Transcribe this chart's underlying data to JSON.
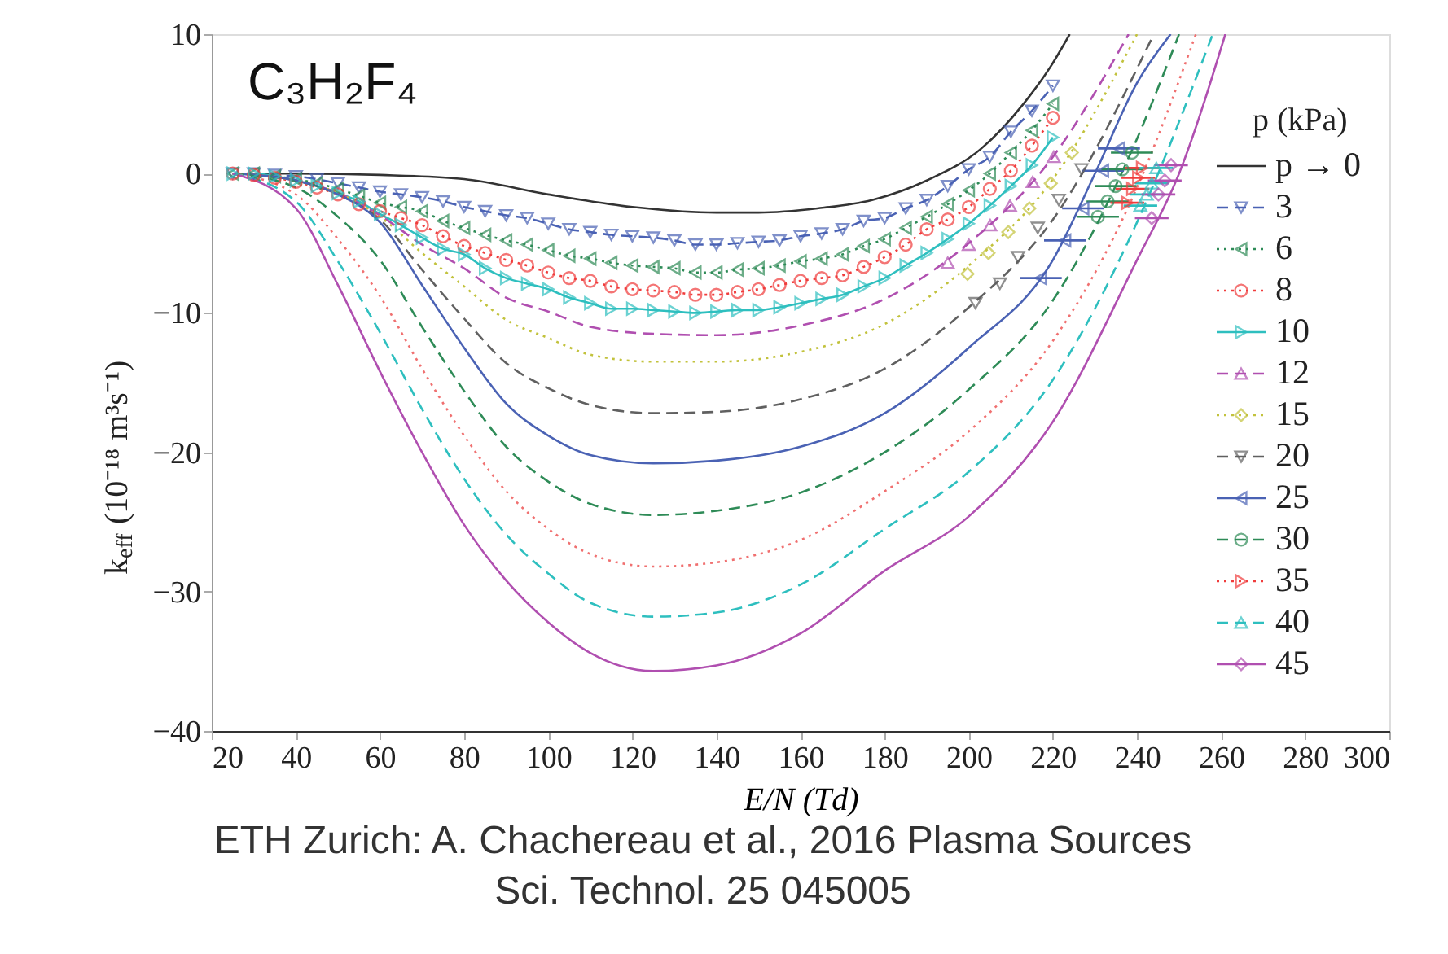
{
  "chart_data": {
    "type": "line",
    "title": "C₃H₂F₄",
    "xlabel": "E/N (Td)",
    "ylabel": "k$_{eff}$ (10⁻¹⁸ m³s⁻¹)",
    "legend_title": "p (kPa)",
    "legend": "right",
    "grid": false,
    "xlim": [
      20,
      300
    ],
    "xticks": [
      20,
      40,
      60,
      80,
      100,
      120,
      140,
      160,
      180,
      200,
      220,
      240,
      260,
      280,
      300
    ],
    "ylim": [
      -40,
      10
    ],
    "yticks": [
      -40,
      -30,
      -20,
      -10,
      0,
      10
    ],
    "annotations": [
      "ETH Zurich: A. Chachereau et al., 2016 Plasma Sources Sci. Technol. 25 045005"
    ],
    "series": [
      {
        "name": "p → 0",
        "color": "#333333",
        "line_style": "solid",
        "marker": "none",
        "x": [
          25,
          40,
          60,
          80,
          100,
          120,
          140,
          150,
          164,
          177,
          190,
          203,
          213,
          219.5,
          224
        ],
        "values": [
          0,
          0,
          -0.1,
          -0.4,
          -1.5,
          -2.4,
          -2.8,
          -2.8,
          -2.5,
          -1.9,
          -0.5,
          1.8,
          5.0,
          7.7,
          10.0
        ]
      },
      {
        "name": "3",
        "color": "#4a62b4",
        "line_style": "dashed",
        "marker": "triangle-down",
        "x": [
          25,
          30,
          35,
          40,
          45,
          50,
          55,
          60,
          65,
          70,
          75,
          80,
          85,
          90,
          95,
          100,
          105,
          110,
          115,
          120,
          125,
          130,
          135,
          140,
          145,
          150,
          155,
          160,
          165,
          170,
          175,
          180,
          185,
          190,
          195,
          200,
          205,
          210,
          215,
          220
        ],
        "values": [
          0,
          0,
          -0.1,
          -0.2,
          -0.4,
          -0.7,
          -1.0,
          -1.3,
          -1.5,
          -1.7,
          -2.0,
          -2.4,
          -2.7,
          -3.0,
          -3.2,
          -3.6,
          -4.0,
          -4.2,
          -4.4,
          -4.5,
          -4.6,
          -4.8,
          -5.1,
          -5.1,
          -5.0,
          -4.9,
          -4.8,
          -4.5,
          -4.3,
          -4.0,
          -3.4,
          -3.2,
          -2.5,
          -1.9,
          -0.9,
          0.3,
          1.2,
          3.0,
          4.5,
          6.3
        ]
      },
      {
        "name": "6",
        "color": "#2e8b57",
        "line_style": "dotted",
        "marker": "triangle-left",
        "x": [
          25,
          30,
          35,
          40,
          45,
          50,
          55,
          60,
          65,
          70,
          75,
          80,
          85,
          90,
          95,
          100,
          105,
          110,
          115,
          120,
          125,
          130,
          135,
          140,
          145,
          150,
          155,
          160,
          165,
          170,
          175,
          180,
          185,
          190,
          195,
          200,
          205,
          210,
          215,
          220
        ],
        "values": [
          0,
          0,
          -0.2,
          -0.4,
          -0.7,
          -1.1,
          -1.6,
          -2.1,
          -2.4,
          -2.7,
          -3.4,
          -3.9,
          -4.4,
          -4.8,
          -5.1,
          -5.5,
          -5.9,
          -6.1,
          -6.4,
          -6.6,
          -6.7,
          -6.8,
          -7.1,
          -7.1,
          -6.9,
          -6.8,
          -6.6,
          -6.3,
          -6.1,
          -5.8,
          -5.2,
          -4.7,
          -3.9,
          -3.1,
          -2.2,
          -1.2,
          0.0,
          1.5,
          3.1,
          5.0
        ]
      },
      {
        "name": "8",
        "color": "#f03c3c",
        "line_style": "dotted",
        "marker": "circle",
        "x": [
          25,
          30,
          35,
          40,
          45,
          50,
          55,
          60,
          65,
          70,
          75,
          80,
          85,
          90,
          95,
          100,
          105,
          110,
          115,
          120,
          125,
          130,
          135,
          140,
          145,
          150,
          155,
          160,
          165,
          170,
          175,
          180,
          185,
          190,
          195,
          200,
          205,
          210,
          215,
          220
        ],
        "values": [
          0,
          -0.1,
          -0.3,
          -0.6,
          -1.0,
          -1.5,
          -2.2,
          -2.7,
          -3.2,
          -3.7,
          -4.5,
          -5.2,
          -5.7,
          -6.2,
          -6.6,
          -7.1,
          -7.5,
          -7.7,
          -8.1,
          -8.3,
          -8.4,
          -8.5,
          -8.7,
          -8.7,
          -8.5,
          -8.3,
          -8.0,
          -7.7,
          -7.5,
          -7.3,
          -6.7,
          -6.0,
          -5.1,
          -4.0,
          -3.3,
          -2.4,
          -1.1,
          0.2,
          2.0,
          4.0
        ]
      },
      {
        "name": "10",
        "color": "#2ebfbf",
        "line_style": "solid",
        "marker": "triangle-right",
        "x": [
          25,
          30,
          35,
          40,
          45,
          50,
          55,
          60,
          65,
          70,
          75,
          80,
          85,
          90,
          95,
          100,
          105,
          110,
          115,
          120,
          125,
          130,
          135,
          140,
          145,
          150,
          155,
          160,
          165,
          170,
          175,
          180,
          185,
          190,
          195,
          200,
          205,
          210,
          215,
          220
        ],
        "values": [
          0,
          0,
          -0.2,
          -0.5,
          -0.9,
          -1.4,
          -2.0,
          -2.9,
          -3.7,
          -4.6,
          -5.4,
          -5.8,
          -6.8,
          -7.5,
          -7.9,
          -8.3,
          -8.9,
          -9.3,
          -9.7,
          -9.7,
          -9.8,
          -9.9,
          -10.0,
          -9.9,
          -9.8,
          -9.8,
          -9.6,
          -9.3,
          -9.0,
          -8.7,
          -8.1,
          -7.5,
          -6.6,
          -5.7,
          -4.7,
          -3.6,
          -2.3,
          -0.9,
          0.6,
          2.6
        ]
      },
      {
        "type": "scatter",
        "name": "12",
        "color": "#b04fb0",
        "line_style": "dashed",
        "marker": "triangle-up",
        "x": [
          195,
          200,
          205.1,
          209.8,
          215.2,
          220.2
        ],
        "values": [
          -6.4,
          -5.1,
          -3.7,
          -2.3,
          -0.6,
          1.2
        ]
      },
      {
        "color": "#b04fb0",
        "line_style": "dashed",
        "x": [
          25,
          40,
          50,
          60,
          70,
          80,
          90,
          100,
          110,
          125,
          140,
          160,
          180,
          200,
          220,
          238
        ],
        "values": [
          0,
          -0.5,
          -1.4,
          -3.0,
          -5.1,
          -6.8,
          -8.9,
          -9.9,
          -11.0,
          -11.5,
          -11.6,
          -10.9,
          -9.0,
          -5.0,
          1.2,
          10
        ]
      },
      {
        "type": "scatter",
        "name": "15",
        "color": "#c2c23c",
        "line_style": "dotted",
        "marker": "diamond",
        "x": [
          199.7,
          204.7,
          209.4,
          214.4,
          219.5,
          224.5
        ],
        "values": [
          -7.2,
          -5.7,
          -4.2,
          -2.5,
          -0.7,
          1.5
        ]
      },
      {
        "color": "#c2c23c",
        "line_style": "dotted",
        "x": [
          25,
          40,
          50,
          60,
          70,
          80,
          90,
          100,
          110,
          125,
          140,
          160,
          180,
          200,
          220,
          240
        ],
        "values": [
          0,
          -0.5,
          -1.4,
          -3.1,
          -5.7,
          -8.1,
          -10.5,
          -11.8,
          -13.0,
          -13.5,
          -13.5,
          -12.8,
          -10.8,
          -6.6,
          -0.4,
          10
        ]
      },
      {
        "type": "scatter",
        "name": "20",
        "color": "#606060",
        "line_style": "dashed",
        "marker": "triangle-down",
        "x": [
          201.6,
          207.4,
          211.7,
          216.4,
          221.4,
          226.8
        ],
        "values": [
          -9.3,
          -7.9,
          -6.0,
          -3.9,
          -1.9,
          0.3
        ]
      },
      {
        "color": "#606060",
        "line_style": "dashed",
        "x": [
          25,
          40,
          50,
          60,
          70,
          80,
          90,
          100,
          110,
          125,
          140,
          160,
          180,
          200,
          220,
          244
        ],
        "values": [
          0,
          -0.5,
          -1.5,
          -3.3,
          -6.9,
          -10.4,
          -13.6,
          -15.4,
          -16.6,
          -17.2,
          -17.1,
          -16.2,
          -14.0,
          -9.6,
          -3.3,
          10
        ]
      },
      {
        "type": "scatter",
        "name": "25",
        "color": "#4a62b4",
        "line_style": "solid",
        "marker": "triangle-left",
        "x": [
          217.1,
          222.9,
          227.2,
          231.9,
          235.7
        ],
        "values": [
          -7.5,
          -4.8,
          -2.5,
          0.2,
          1.8
        ],
        "xerrors": [
          5,
          5,
          5,
          5,
          5
        ]
      },
      {
        "color": "#4a62b4",
        "line_style": "solid",
        "x": [
          25,
          40,
          50,
          60,
          70,
          80,
          90,
          100,
          110,
          125,
          140,
          160,
          180,
          200,
          220,
          230,
          240,
          248
        ],
        "values": [
          0,
          -0.5,
          -1.5,
          -3.5,
          -8.0,
          -12.5,
          -16.5,
          -18.8,
          -20.2,
          -20.8,
          -20.6,
          -19.6,
          -17.2,
          -12.5,
          -6.2,
          0,
          6.5,
          10
        ]
      },
      {
        "type": "scatter",
        "name": "30",
        "color": "#2e8b57",
        "line_style": "dashed",
        "marker": "circle",
        "x": [
          230.7,
          233.0,
          234.9,
          236.5,
          238.8
        ],
        "values": [
          -3.1,
          -2.0,
          -0.9,
          0.3,
          1.5
        ],
        "xerrors": [
          5,
          5,
          5,
          5,
          5
        ]
      },
      {
        "color": "#2e8b57",
        "line_style": "dashed",
        "x": [
          25,
          40,
          50,
          60,
          70,
          80,
          90,
          100,
          110,
          125,
          140,
          160,
          180,
          200,
          220,
          240,
          250
        ],
        "values": [
          0,
          -1.0,
          -3.1,
          -6.2,
          -11.0,
          -15.6,
          -19.6,
          -22.1,
          -23.7,
          -24.5,
          -24.2,
          -22.9,
          -20.0,
          -15.5,
          -9.1,
          2.5,
          10
        ]
      },
      {
        "type": "scatter",
        "name": "35",
        "color": "#f03c3c",
        "line_style": "dotted",
        "marker": "triangle-right",
        "x": [
          237.7,
          238.9,
          240.3,
          241.2
        ],
        "values": [
          -2.1,
          -1.1,
          -0.3,
          0.4
        ],
        "xerrors": [
          4,
          4,
          4,
          4
        ]
      },
      {
        "color": "#f07070",
        "line_style": "dotted",
        "x": [
          25,
          40,
          50,
          60,
          70,
          80,
          90,
          100,
          110,
          125,
          140,
          160,
          180,
          200,
          220,
          240,
          254
        ],
        "values": [
          0,
          -1.5,
          -4.7,
          -8.8,
          -14.0,
          -18.8,
          -22.8,
          -25.5,
          -27.3,
          -28.2,
          -27.9,
          -26.3,
          -22.8,
          -18.5,
          -12.0,
          -1.0,
          10
        ]
      },
      {
        "type": "scatter",
        "name": "40",
        "color": "#2ebfbf",
        "line_style": "dashed",
        "marker": "triangle-up",
        "x": [
          240.8,
          242.3,
          243.5,
          244.6
        ],
        "values": [
          -2.3,
          -1.5,
          -0.7,
          0.4
        ],
        "xerrors": [
          4,
          4,
          4,
          4
        ]
      },
      {
        "color": "#2ebfbf",
        "line_style": "dashed",
        "x": [
          25,
          40,
          50,
          60,
          70,
          80,
          90,
          100,
          110,
          125,
          140,
          160,
          180,
          200,
          220,
          240,
          258
        ],
        "values": [
          0,
          -2.0,
          -6.3,
          -11.4,
          -16.9,
          -21.9,
          -25.9,
          -28.7,
          -30.8,
          -31.8,
          -31.5,
          -29.5,
          -25.5,
          -21.4,
          -14.8,
          -3.5,
          10
        ]
      },
      {
        "type": "scatter",
        "name": "45",
        "color": "#b04fb0",
        "line_style": "solid",
        "marker": "diamond",
        "x": [
          243.5,
          245.1,
          246.6,
          248.1
        ],
        "values": [
          -3.2,
          -1.5,
          -0.5,
          0.6
        ],
        "xerrors": [
          4,
          4,
          4,
          4
        ]
      },
      {
        "color": "#b04fb0",
        "line_style": "solid",
        "x": [
          25,
          40,
          50,
          60,
          70,
          80,
          90,
          100,
          110,
          125,
          140,
          160,
          180,
          200,
          220,
          240,
          250,
          261
        ],
        "values": [
          0,
          -2.5,
          -8.0,
          -14.2,
          -20.0,
          -25.2,
          -29.2,
          -32.2,
          -34.4,
          -35.7,
          -35.3,
          -33.0,
          -28.5,
          -24.6,
          -17.8,
          -6.2,
          0,
          10
        ]
      }
    ]
  }
}
